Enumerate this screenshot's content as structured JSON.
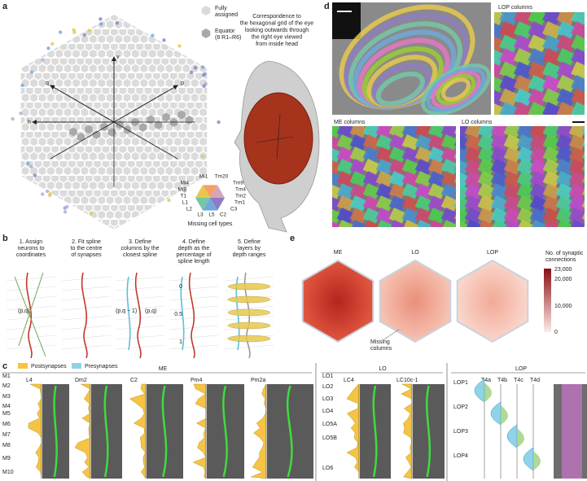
{
  "panel_a": {
    "label": "a",
    "legend_fully": [
      "Fully",
      "assigned"
    ],
    "legend_equator": [
      "Equator",
      "(8 R1–R6)"
    ],
    "axes": [
      "v",
      "q",
      "p",
      "h"
    ],
    "eye_caption": [
      "Correspondence to",
      "the hexagonal grid of the eye",
      "looking outwards through",
      "the right eye viewed",
      "from inside head"
    ],
    "cell_types": [
      "Mi1",
      "Tm20",
      "Mi4",
      "Tm9",
      "Mi9",
      "Tm4",
      "T1",
      "Tm2",
      "L1",
      "Tm1",
      "L2",
      "C3",
      "L3",
      "L5",
      "C2"
    ],
    "missing_label": "Missing cell types"
  },
  "panel_b": {
    "label": "b",
    "steps": [
      [
        "1. Assign",
        "neurons to",
        "coordinates"
      ],
      [
        "2. Fit spline",
        "to the centre",
        "of synapses"
      ],
      [
        "3. Define",
        "columns by the",
        "closest spline"
      ],
      [
        "4. Define",
        "depth as the",
        "percentage of",
        "spline length"
      ],
      [
        "5. Define",
        "layers by",
        "depth ranges"
      ]
    ],
    "annotations": [
      "(p,q)",
      "(p,q − 1)",
      "(p,q)",
      "0",
      "0.5",
      "1"
    ]
  },
  "panel_c": {
    "label": "c",
    "legend": [
      "Postsynapses",
      "Presynapses"
    ],
    "groups": [
      {
        "name": "ME",
        "cells": [
          "L4",
          "Dm2",
          "C2",
          "Pm4",
          "Pm2a"
        ],
        "layers": [
          "M1",
          "M2",
          "M3",
          "M4",
          "M5",
          "M6",
          "M7",
          "M8",
          "M9",
          "M10"
        ]
      },
      {
        "name": "LO",
        "cells": [
          "LC4",
          "LC10c-1"
        ],
        "layers": [
          "LO1",
          "LO2",
          "LO3",
          "LO4",
          "LO5A",
          "LO5B",
          "LO6"
        ]
      },
      {
        "name": "LOP",
        "cells": [
          "T4a",
          "T4b",
          "T4c",
          "T4d"
        ],
        "layers": [
          "LOP1",
          "LOP2",
          "LOP3",
          "LOP4"
        ]
      }
    ]
  },
  "panel_d": {
    "label": "d",
    "titles": [
      "LOP columns",
      "ME columns",
      "LO columns"
    ]
  },
  "panel_e": {
    "label": "e",
    "titles": [
      "ME",
      "LO",
      "LOP"
    ],
    "colorbar_title": [
      "No. of synaptic",
      "connections"
    ],
    "colorbar_ticks": [
      "23,000",
      "20,000",
      "10,000",
      "0"
    ],
    "missing": [
      "Missing",
      "columns"
    ]
  }
}
